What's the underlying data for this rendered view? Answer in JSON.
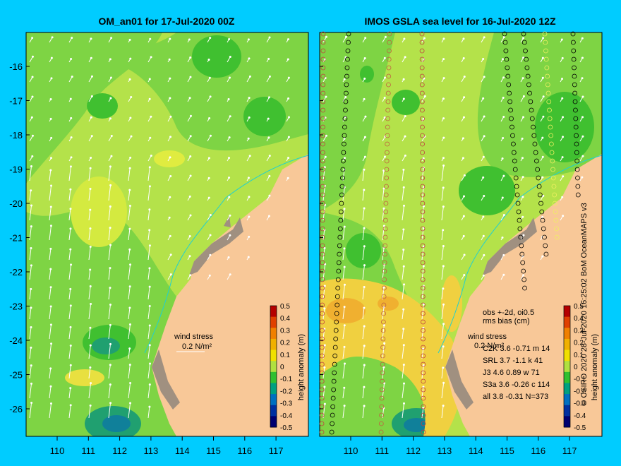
{
  "panels": {
    "left": {
      "title": "OM_an01 for 17-Jul-2020 00Z",
      "wind_label": "wind stress",
      "wind_scale_label": "0.2 N/m²"
    },
    "right": {
      "title": "IMOS GSLA sea level  for 16-Jul-2020 12Z",
      "wind_label": "wind stress",
      "wind_scale_label": "0.2 N/m²",
      "obs_header_1": "obs +-2d, oi0.5",
      "obs_header_2": "rms bias (cm)",
      "obs_rows": [
        "C2K    3.6 -0.71 m 14",
        "SRL    3.7 -1.1 k 41",
        "J3      4.6 0.89 w 71",
        "S3a    3.6 -0.26 c 114",
        "all     3.8 -0.31 N=373"
      ]
    }
  },
  "axes": {
    "lon_ticks": [
      "110",
      "111",
      "112",
      "113",
      "114",
      "115",
      "116",
      "117"
    ],
    "lat_ticks": [
      "-16",
      "-17",
      "-18",
      "-19",
      "-20",
      "-21",
      "-22",
      "-23",
      "-24",
      "-25",
      "-26"
    ]
  },
  "colorbar": {
    "label": "height anomaly (m)",
    "ticks": [
      "0.5",
      "0.4",
      "0.3",
      "0.2",
      "0.1",
      "0",
      "-0.1",
      "-0.2",
      "-0.3",
      "-0.4",
      "-0.5"
    ],
    "colors": [
      "#b40000",
      "#e04000",
      "#f08000",
      "#f0b000",
      "#f0e000",
      "#b0e040",
      "#30c030",
      "#00a080",
      "#0070c0",
      "#0030a0",
      "#000070"
    ]
  },
  "credit": "© CSIRO 2020   28-Jul-2020 16:25:02 BoM OceanMAPS v3",
  "colors": {
    "background": "#00ccff",
    "ocean_base": "#b4e24a",
    "land": "#f8c898",
    "coast": "#a09080"
  }
}
